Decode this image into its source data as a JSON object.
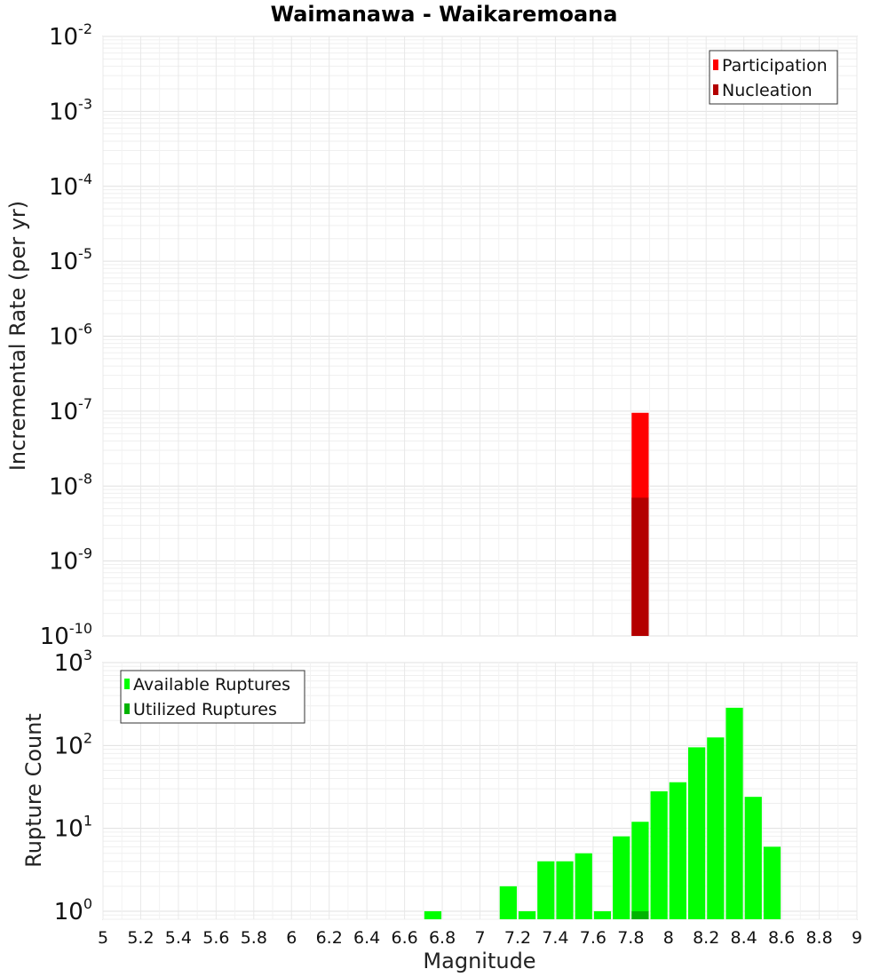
{
  "chart_data": [
    {
      "type": "bar",
      "title": "Waimanawa - Waikaremoana",
      "ylabel": "Incremental Rate (per yr)",
      "yscale": "log",
      "ylim": [
        1e-10,
        0.01
      ],
      "xlim": [
        5,
        9
      ],
      "bin_width": 0.1,
      "grid": true,
      "legend_position": "top-right",
      "y_ticks": [
        {
          "base": "10",
          "exp": "-2",
          "value": 0.01
        },
        {
          "base": "10",
          "exp": "-3",
          "value": 0.001
        },
        {
          "base": "10",
          "exp": "-4",
          "value": 0.0001
        },
        {
          "base": "10",
          "exp": "-5",
          "value": 1e-05
        },
        {
          "base": "10",
          "exp": "-6",
          "value": 1e-06
        },
        {
          "base": "10",
          "exp": "-7",
          "value": 1e-07
        },
        {
          "base": "10",
          "exp": "-8",
          "value": 1e-08
        },
        {
          "base": "10",
          "exp": "-9",
          "value": 1e-09
        },
        {
          "base": "10",
          "exp": "-10",
          "value": 1e-10
        }
      ],
      "series": [
        {
          "name": "Participation",
          "color": "#ff0000",
          "x": [
            7.85
          ],
          "values": [
            9.5e-08
          ]
        },
        {
          "name": "Nucleation",
          "color": "#b30000",
          "x": [
            7.85
          ],
          "values": [
            7e-09
          ]
        }
      ]
    },
    {
      "type": "bar",
      "title": "",
      "ylabel": "Rupture Count",
      "xlabel": "Magnitude",
      "yscale": "log",
      "ylim": [
        0.8,
        1000
      ],
      "xlim": [
        5,
        9
      ],
      "bin_width": 0.1,
      "grid": true,
      "legend_position": "top-left",
      "x_tick_labels": [
        "5",
        "5.2",
        "5.4",
        "5.6",
        "5.8",
        "6",
        "6.2",
        "6.4",
        "6.6",
        "6.8",
        "7",
        "7.2",
        "7.4",
        "7.6",
        "7.8",
        "8",
        "8.2",
        "8.4",
        "8.6",
        "8.8",
        "9"
      ],
      "y_ticks": [
        {
          "base": "10",
          "exp": "3",
          "value": 1000
        },
        {
          "base": "10",
          "exp": "2",
          "value": 100
        },
        {
          "base": "10",
          "exp": "1",
          "value": 10
        },
        {
          "base": "10",
          "exp": "0",
          "value": 1
        }
      ],
      "series": [
        {
          "name": "Available Ruptures",
          "color": "#00ff00",
          "x": [
            6.75,
            7.15,
            7.25,
            7.35,
            7.45,
            7.55,
            7.65,
            7.75,
            7.85,
            7.95,
            8.05,
            8.15,
            8.25,
            8.35,
            8.45,
            8.55
          ],
          "values": [
            1,
            2,
            1,
            4,
            4,
            5,
            1,
            8,
            12,
            28,
            36,
            95,
            125,
            285,
            24,
            6
          ]
        },
        {
          "name": "Utilized Ruptures",
          "color": "#00b300",
          "x": [
            7.85
          ],
          "values": [
            1
          ]
        }
      ]
    }
  ]
}
